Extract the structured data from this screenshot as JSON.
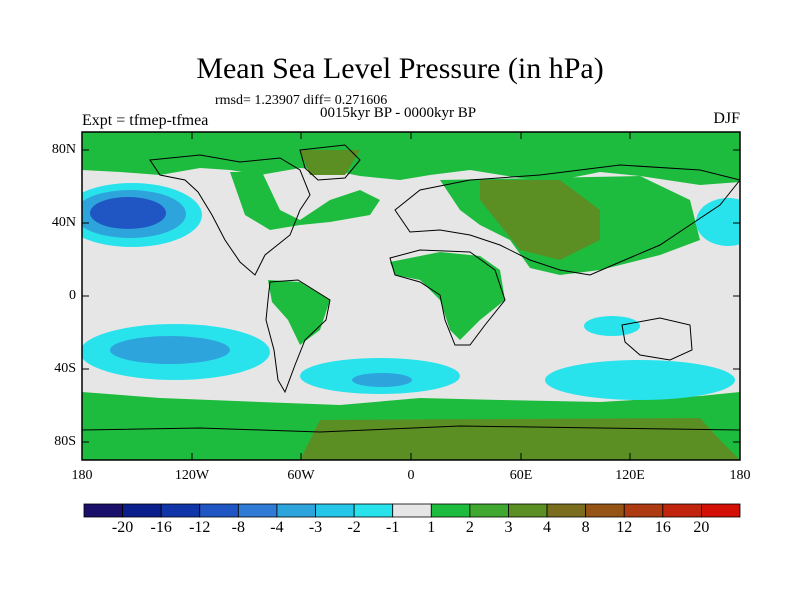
{
  "title": "Mean Sea Level Pressure (in hPa)",
  "stats": "rmsd= 1.23907 diff= 0.271606",
  "experiment": "Expt = tfmep-tfmea",
  "period": "0015kyr BP - 0000kyr BP",
  "season": "DJF",
  "lat_labels": [
    "80N",
    "40N",
    "0",
    "40S",
    "80S"
  ],
  "lon_labels": [
    "180",
    "120W",
    "60W",
    "0",
    "60E",
    "120E",
    "180"
  ],
  "colorbar": {
    "colors": [
      "#1a0f6b",
      "#0a1f8c",
      "#0f35a8",
      "#1f56c4",
      "#2f7bd6",
      "#2ea4dc",
      "#26c6e8",
      "#28e3ec",
      "#e6e6e6",
      "#1ebc3e",
      "#40a830",
      "#5b8f24",
      "#7a6e1e",
      "#955316",
      "#ad3a10",
      "#c0240c",
      "#d30f06"
    ],
    "labels": [
      "-20",
      "-16",
      "-12",
      "-8",
      "-4",
      "-3",
      "-2",
      "-1",
      "1",
      "2",
      "3",
      "4",
      "8",
      "12",
      "16",
      "20"
    ]
  }
}
